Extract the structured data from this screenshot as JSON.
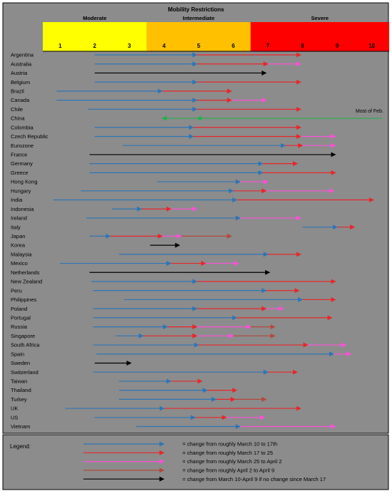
{
  "chart_data": {
    "type": "timeline-arrows",
    "title": "Mobility Restrictions",
    "bands": [
      {
        "label": "Moderate",
        "from": 1,
        "to": 3,
        "color": "#ffff00"
      },
      {
        "label": "Intermediate",
        "from": 4,
        "to": 6,
        "color": "#ffc000"
      },
      {
        "label": "Severe",
        "from": 7,
        "to": 10,
        "color": "#ff0000"
      }
    ],
    "scale": [
      1,
      2,
      3,
      4,
      5,
      6,
      7,
      8,
      9,
      10
    ],
    "xlim": [
      0.5,
      10.5
    ],
    "annotation": "Most of Feb.",
    "periods": [
      {
        "key": "blue",
        "color": "#2e75b6",
        "label": "= change from roughly March 10 to 17th"
      },
      {
        "key": "red",
        "color": "#e8262a",
        "label": "= change from roughly March 17 to 25"
      },
      {
        "key": "pink",
        "color": "#ff4fd8",
        "label": "= change from roughly March 25 to April 2"
      },
      {
        "key": "brown",
        "color": "#b5473c",
        "label": "= change from roughly April 2 to April 9"
      },
      {
        "key": "black",
        "color": "#000000",
        "label": "= change from March 10-April 9 if no change since March 17"
      }
    ],
    "countries": [
      {
        "name": "Argentina",
        "arrows": [
          [
            "blue",
            2.0,
            4.95
          ],
          [
            "red",
            4.95,
            7.95
          ]
        ]
      },
      {
        "name": "Australia",
        "arrows": [
          [
            "blue",
            2.0,
            4.95
          ],
          [
            "red",
            4.95,
            7.0
          ],
          [
            "pink",
            7.0,
            7.95
          ]
        ]
      },
      {
        "name": "Austria",
        "arrows": [
          [
            "black",
            2.0,
            6.95
          ]
        ]
      },
      {
        "name": "Belgium",
        "arrows": [
          [
            "blue",
            2.0,
            4.95
          ],
          [
            "red",
            4.95,
            7.95
          ]
        ]
      },
      {
        "name": "Brazil",
        "arrows": [
          [
            "blue",
            0.9,
            3.95
          ],
          [
            "red",
            3.95,
            5.95
          ]
        ]
      },
      {
        "name": "Canada",
        "arrows": [
          [
            "blue",
            0.9,
            4.95
          ],
          [
            "red",
            4.95,
            5.95
          ],
          [
            "pink",
            5.95,
            6.95
          ]
        ]
      },
      {
        "name": "Chile",
        "arrows": [
          [
            "blue",
            1.8,
            4.95
          ],
          [
            "red",
            4.95,
            7.95
          ]
        ]
      },
      {
        "name": "China",
        "arrows": [
          [
            "green",
            10.3,
            4.95
          ],
          [
            "green",
            4.95,
            3.95
          ]
        ]
      },
      {
        "name": "Colombia",
        "arrows": [
          [
            "blue",
            2.0,
            4.85
          ],
          [
            "red",
            4.85,
            7.95
          ]
        ]
      },
      {
        "name": "Czech Republic",
        "arrows": [
          [
            "blue",
            2.0,
            4.85
          ],
          [
            "red",
            4.85,
            7.95
          ],
          [
            "pink",
            7.95,
            8.95
          ]
        ]
      },
      {
        "name": "Eurozone",
        "arrows": [
          [
            "blue",
            2.8,
            7.5
          ],
          [
            "red",
            7.5,
            8.0
          ],
          [
            "pink",
            8.0,
            8.95
          ]
        ]
      },
      {
        "name": "France",
        "arrows": [
          [
            "black",
            1.85,
            8.95
          ]
        ]
      },
      {
        "name": "Germany",
        "arrows": [
          [
            "blue",
            1.85,
            6.85
          ],
          [
            "red",
            6.85,
            7.85
          ]
        ]
      },
      {
        "name": "Greece",
        "arrows": [
          [
            "blue",
            1.85,
            6.85
          ],
          [
            "red",
            6.85,
            8.95
          ]
        ]
      },
      {
        "name": "Hong Kong",
        "arrows": [
          [
            "blue",
            3.8,
            6.2
          ],
          [
            "pink",
            6.2,
            7.0
          ]
        ]
      },
      {
        "name": "Hungary",
        "arrows": [
          [
            "blue",
            1.6,
            6.0
          ],
          [
            "red",
            6.0,
            6.95
          ],
          [
            "pink",
            6.95,
            8.9
          ]
        ]
      },
      {
        "name": "India",
        "arrows": [
          [
            "blue",
            0.8,
            6.1
          ],
          [
            "red",
            6.1,
            10.05
          ]
        ]
      },
      {
        "name": "Indonesia",
        "arrows": [
          [
            "blue",
            2.5,
            3.35
          ],
          [
            "red",
            3.35,
            4.2
          ],
          [
            "pink",
            4.2,
            4.95
          ]
        ]
      },
      {
        "name": "Ireland",
        "arrows": [
          [
            "blue",
            1.75,
            6.2
          ],
          [
            "pink",
            6.2,
            7.95
          ]
        ]
      },
      {
        "name": "Italy",
        "arrows": [
          [
            "blue",
            8.0,
            9.0
          ],
          [
            "red",
            9.0,
            9.5
          ]
        ]
      },
      {
        "name": "Japan",
        "arrows": [
          [
            "blue",
            1.85,
            2.45
          ],
          [
            "red",
            2.45,
            3.95
          ],
          [
            "pink",
            3.95,
            4.5
          ],
          [
            "brown",
            4.5,
            5.95
          ]
        ]
      },
      {
        "name": "Korea",
        "arrows": [
          [
            "black",
            3.6,
            4.45
          ]
        ]
      },
      {
        "name": "Malaysia",
        "arrows": [
          [
            "blue",
            2.7,
            7.0
          ],
          [
            "red",
            7.0,
            7.95
          ]
        ]
      },
      {
        "name": "Mexico",
        "arrows": [
          [
            "blue",
            1.0,
            4.2
          ],
          [
            "red",
            4.2,
            5.2
          ],
          [
            "pink",
            5.2,
            6.15
          ]
        ]
      },
      {
        "name": "Netherlands",
        "arrows": [
          [
            "black",
            1.85,
            7.05
          ]
        ]
      },
      {
        "name": "New Zealand",
        "arrows": [
          [
            "blue",
            1.9,
            4.95
          ],
          [
            "red",
            4.95,
            8.95
          ]
        ]
      },
      {
        "name": "Peru",
        "arrows": [
          [
            "blue",
            1.95,
            6.95
          ],
          [
            "red",
            6.95,
            7.9
          ]
        ]
      },
      {
        "name": "Philippines",
        "arrows": [
          [
            "blue",
            2.85,
            8.0
          ],
          [
            "red",
            8.0,
            8.95
          ]
        ]
      },
      {
        "name": "Poland",
        "arrows": [
          [
            "blue",
            1.95,
            4.95
          ],
          [
            "red",
            4.95,
            6.95
          ],
          [
            "pink",
            6.95,
            7.45
          ]
        ]
      },
      {
        "name": "Portugal",
        "arrows": [
          [
            "blue",
            1.95,
            6.1
          ],
          [
            "red",
            6.1,
            8.85
          ]
        ]
      },
      {
        "name": "Russia",
        "arrows": [
          [
            "blue",
            1.95,
            4.1
          ],
          [
            "red",
            4.1,
            4.95
          ],
          [
            "pink",
            4.95,
            6.5
          ],
          [
            "brown",
            6.5,
            7.2
          ]
        ]
      },
      {
        "name": "Singapore",
        "arrows": [
          [
            "blue",
            2.6,
            3.4
          ],
          [
            "red",
            3.4,
            4.95
          ],
          [
            "pink",
            4.95,
            6.0
          ],
          [
            "brown",
            6.0,
            7.2
          ]
        ]
      },
      {
        "name": "South Africa",
        "arrows": [
          [
            "blue",
            1.95,
            5.0
          ],
          [
            "red",
            5.0,
            8.15
          ],
          [
            "pink",
            8.15,
            9.25
          ]
        ]
      },
      {
        "name": "Spain",
        "arrows": [
          [
            "blue",
            2.05,
            8.9
          ],
          [
            "pink",
            8.9,
            9.4
          ]
        ]
      },
      {
        "name": "Sweden",
        "arrows": [
          [
            "black",
            2.0,
            3.05
          ]
        ]
      },
      {
        "name": "Switzerland",
        "arrows": [
          [
            "blue",
            1.95,
            7.0
          ],
          [
            "red",
            7.0,
            7.85
          ]
        ]
      },
      {
        "name": "Taiwan",
        "arrows": [
          [
            "blue",
            2.7,
            4.2
          ],
          [
            "red",
            4.2,
            5.1
          ]
        ]
      },
      {
        "name": "Thailand",
        "arrows": [
          [
            "blue",
            2.7,
            5.25
          ],
          [
            "red",
            5.25,
            6.1
          ]
        ]
      },
      {
        "name": "Turkey",
        "arrows": [
          [
            "blue",
            2.7,
            5.5
          ],
          [
            "red",
            5.5,
            6.05
          ],
          [
            "brown",
            6.05,
            6.95
          ]
        ]
      },
      {
        "name": "UK",
        "arrows": [
          [
            "blue",
            1.15,
            4.0
          ],
          [
            "red",
            4.0,
            7.95
          ]
        ]
      },
      {
        "name": "US",
        "arrows": [
          [
            "blue",
            2.0,
            4.9
          ],
          [
            "red",
            4.9,
            5.8
          ],
          [
            "pink",
            5.8,
            6.9
          ]
        ]
      },
      {
        "name": "Vietnam",
        "arrows": [
          [
            "blue",
            3.2,
            6.2
          ],
          [
            "pink",
            6.2,
            8.95
          ]
        ]
      }
    ],
    "legend_title": "Legend:"
  }
}
